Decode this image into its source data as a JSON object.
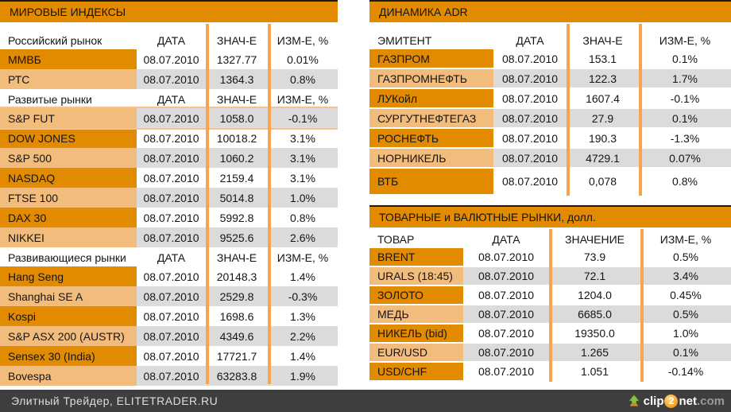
{
  "colors": {
    "banner_orange": "#e28a00",
    "dark_row_label": "#e28a00",
    "light_row_label": "#f2bc7c",
    "gray_cell": "#dbdbdb",
    "column_separator": "#f7a44f",
    "header_text_orange": "#f7953f",
    "footer_bg": "#3e3e3e"
  },
  "panels": [
    {
      "id": "world-indices",
      "title": "МИРОВЫЕ ИНДЕКСЫ",
      "sections": [
        {
          "headers": [
            "Российский рынок",
            "ДАТА",
            "ЗНАЧ-Е",
            "ИЗМ-Е, %"
          ],
          "first_shade": "dark",
          "rows": [
            {
              "label": "ММВБ",
              "date": "08.07.2010",
              "value": "1327.77",
              "change": "0.01%"
            },
            {
              "label": "РТС",
              "date": "08.07.2010",
              "value": "1364.3",
              "change": "0.8%"
            }
          ]
        },
        {
          "headers": [
            "Развитые рынки",
            "ДАТА",
            "ЗНАЧ-Е",
            "ИЗМ-Е, %"
          ],
          "first_shade": "light",
          "rows": [
            {
              "label": "S&P FUT",
              "date": "08.07.2010",
              "value": "1058.0",
              "change": "-0.1%",
              "highlight": true
            },
            {
              "label": "DOW JONES",
              "date": "08.07.2010",
              "value": "10018.2",
              "change": "3.1%"
            },
            {
              "label": "S&P 500",
              "date": "08.07.2010",
              "value": "1060.2",
              "change": "3.1%"
            },
            {
              "label": "NASDAQ",
              "date": "08.07.2010",
              "value": "2159.4",
              "change": "3.1%"
            },
            {
              "label": "FTSE 100",
              "date": "08.07.2010",
              "value": "5014.8",
              "change": "1.0%"
            },
            {
              "label": "DAX 30",
              "date": "08.07.2010",
              "value": "5992.8",
              "change": "0.8%"
            },
            {
              "label": "NIKKEI",
              "date": "08.07.2010",
              "value": "9525.6",
              "change": "2.6%"
            }
          ]
        },
        {
          "headers": [
            "Развивающиеся рынки",
            "ДАТА",
            "ЗНАЧ-Е",
            "ИЗМ-Е, %"
          ],
          "first_shade": "dark",
          "rows": [
            {
              "label": "Hang Seng",
              "date": "08.07.2010",
              "value": "20148.3",
              "change": "1.4%"
            },
            {
              "label": "Shanghai SE A",
              "date": "08.07.2010",
              "value": "2529.8",
              "change": "-0.3%"
            },
            {
              "label": "Kospi",
              "date": "08.07.2010",
              "value": "1698.6",
              "change": "1.3%"
            },
            {
              "label": "S&P ASX 200 (AUSTR)",
              "date": "08.07.2010",
              "value": "4349.6",
              "change": "2.2%"
            },
            {
              "label": "Sensex 30 (India)",
              "date": "08.07.2010",
              "value": "17721.7",
              "change": "1.4%"
            },
            {
              "label": "Bovespa",
              "date": "08.07.2010",
              "value": "63283.8",
              "change": "1.9%"
            }
          ]
        }
      ]
    },
    {
      "id": "adr-dynamics",
      "title": "ДИНАМИКА ADR",
      "sections": [
        {
          "headers": [
            "ЭМИТЕНТ",
            "ДАТА",
            "ЗНАЧ-Е",
            "ИЗМ-Е, %"
          ],
          "first_shade": "dark",
          "rows": [
            {
              "label": "ГАЗПРОМ",
              "date": "08.07.2010",
              "value": "153.1",
              "change": "0.1%"
            },
            {
              "label": "ГАЗПРОМНЕФТЬ",
              "date": "08.07.2010",
              "value": "122.3",
              "change": "1.7%"
            },
            {
              "label": "ЛУКойл",
              "date": "08.07.2010",
              "value": "1607.4",
              "change": "-0.1%"
            },
            {
              "label": "СУРГУТНЕФТЕГАЗ",
              "date": "08.07.2010",
              "value": "27.9",
              "change": "0.1%"
            },
            {
              "label": "РОСНЕФТЬ",
              "date": "08.07.2010",
              "value": "190.3",
              "change": "-1.3%"
            },
            {
              "label": "НОРНИКЕЛЬ",
              "date": "08.07.2010",
              "value": "4729.1",
              "change": "0.07%"
            },
            {
              "label": "ВТБ",
              "date": "08.07.2010",
              "value": "0,078",
              "change": "0.8%",
              "tall": true
            }
          ]
        }
      ]
    },
    {
      "id": "commodity-currency",
      "title": "ТОВАРНЫЕ и ВАЛЮТНЫЕ РЫНКИ, долл.",
      "sections": [
        {
          "headers": [
            "ТОВАР",
            "ДАТА",
            "ЗНАЧЕНИЕ",
            "ИЗМ-Е, %"
          ],
          "first_shade": "dark",
          "rows": [
            {
              "label": "BRENT",
              "date": "08.07.2010",
              "value": "73.9",
              "change": "0.5%"
            },
            {
              "label": "URALS (18:45)",
              "date": "08.07.2010",
              "value": "72.1",
              "change": "3.4%"
            },
            {
              "label": "ЗОЛОТО",
              "date": "08.07.2010",
              "value": "1204.0",
              "change": "0.45%"
            },
            {
              "label": "МЕДЬ",
              "date": "08.07.2010",
              "value": "6685.0",
              "change": "0.5%"
            },
            {
              "label": "НИКЕЛЬ (bid)",
              "date": "08.07.2010",
              "value": "19350.0",
              "change": "1.0%"
            },
            {
              "label": "EUR/USD",
              "date": "08.07.2010",
              "value": "1.265",
              "change": "0.1%"
            },
            {
              "label": "USD/CHF",
              "date": "08.07.2010",
              "value": "1.051",
              "change": "-0.14%"
            }
          ]
        }
      ]
    }
  ],
  "footer": {
    "site": "Элитный Трейдер, ELITETRADER.RU",
    "logo": {
      "clip": "clip",
      "two": "2",
      "net": "net",
      "com": ".com"
    }
  }
}
